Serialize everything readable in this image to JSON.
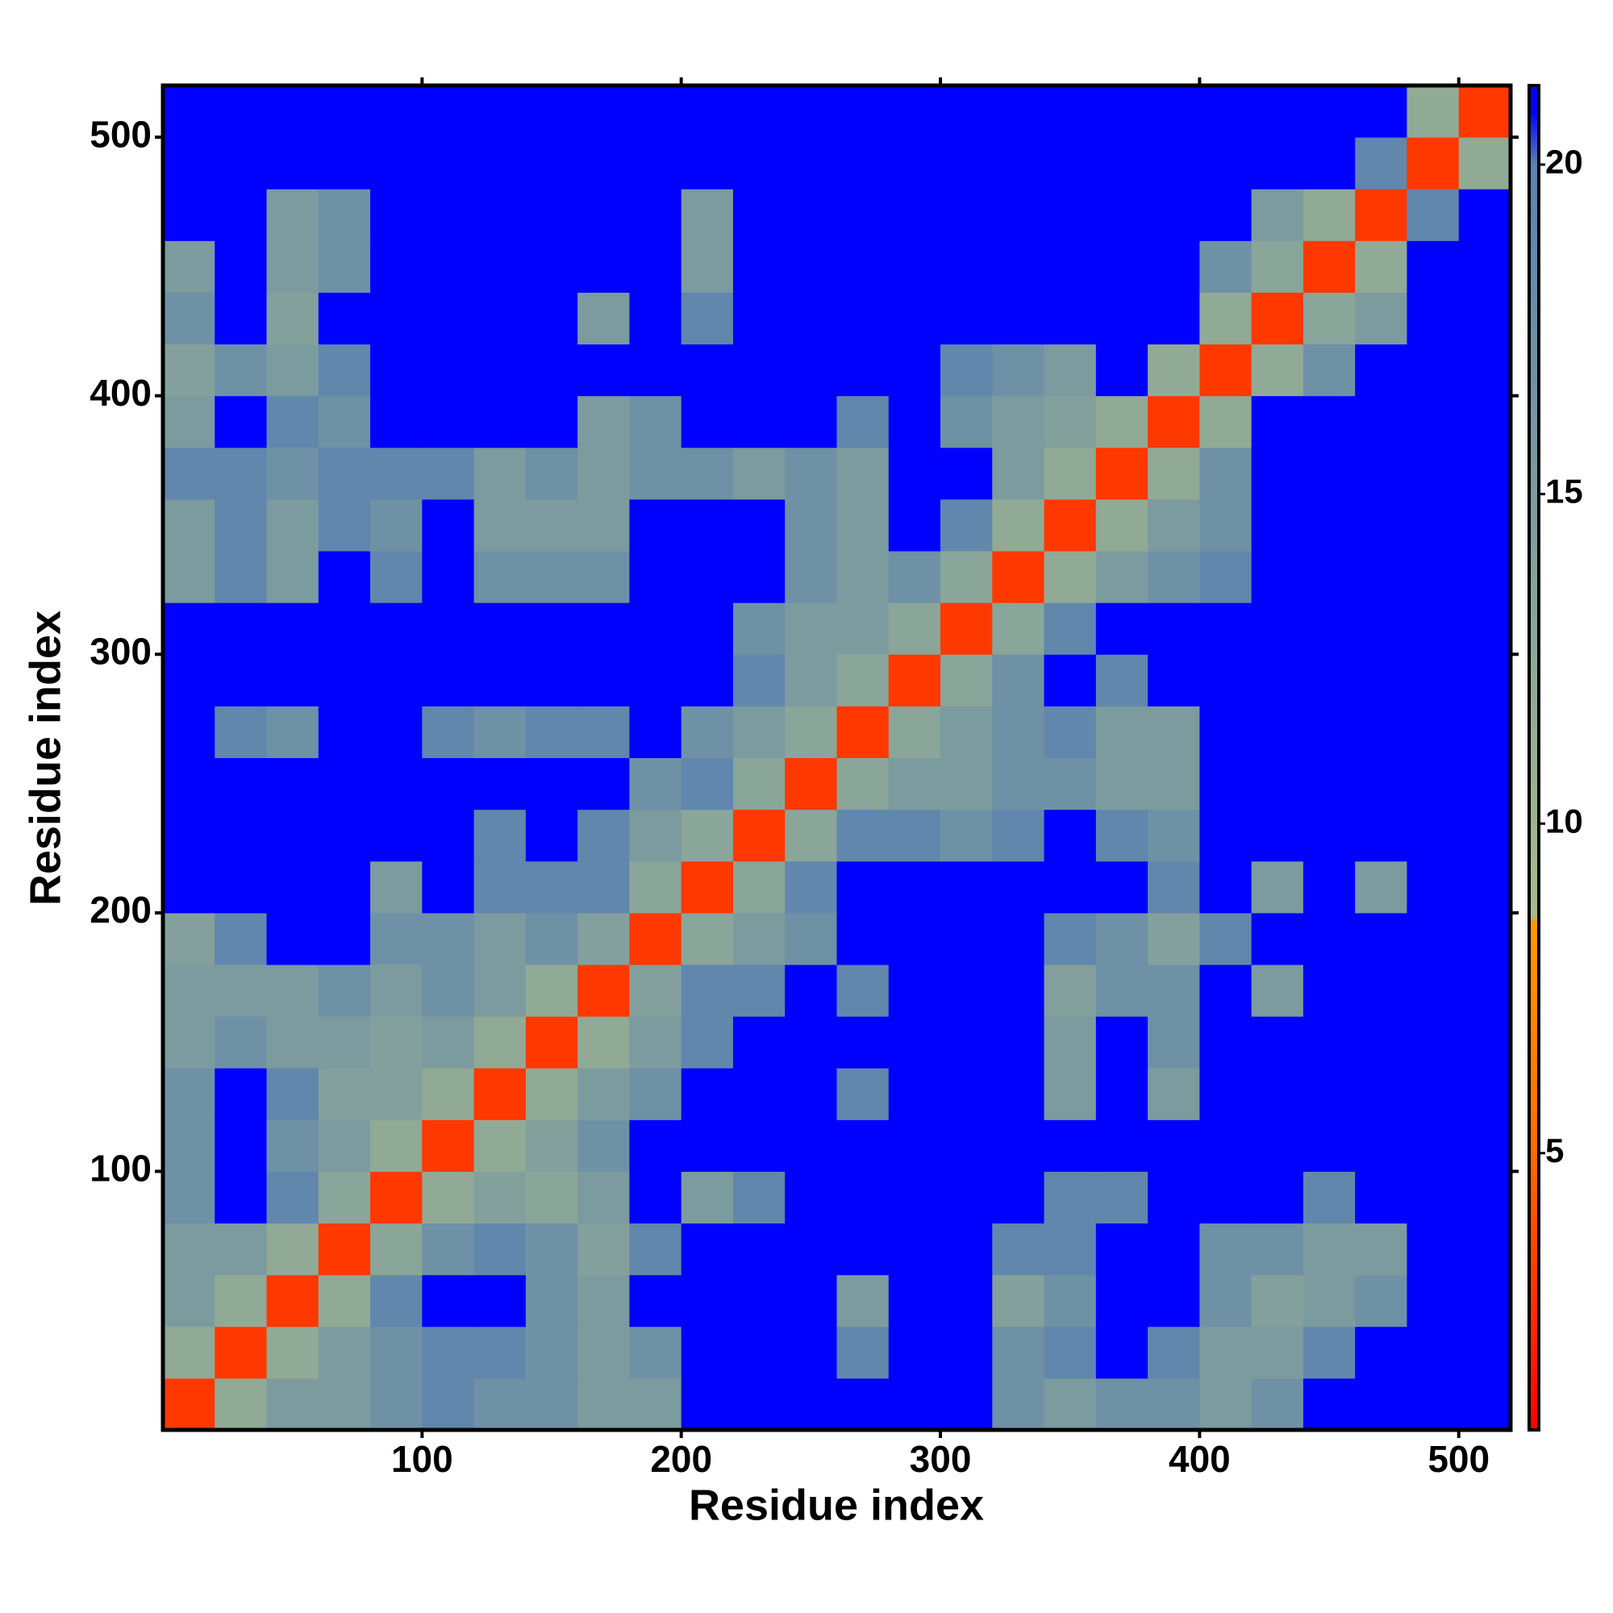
{
  "chart_data": {
    "type": "heatmap",
    "x_label": "Residue index",
    "y_label": "Residue index",
    "bins": [
      0,
      20,
      40,
      60,
      80,
      100,
      120,
      140,
      160,
      180,
      200,
      220,
      240,
      260,
      280,
      300,
      320,
      340,
      360,
      380,
      400,
      420,
      440,
      460,
      480,
      500,
      520
    ],
    "xlim": [
      0,
      520
    ],
    "ylim": [
      0,
      520
    ],
    "xticks": [
      100,
      200,
      300,
      400,
      500
    ],
    "yticks": [
      100,
      200,
      300,
      400,
      500
    ],
    "zlim": [
      0.8,
      21.2
    ],
    "zticks": [
      5,
      10,
      15,
      20
    ],
    "colorscale": [
      [
        0.8,
        "#ff0000"
      ],
      [
        5,
        "#ff6a00"
      ],
      [
        8.5,
        "#ff9900"
      ],
      [
        8.6,
        "#a8bb8a"
      ],
      [
        20,
        "#5a82b0"
      ],
      [
        20.8,
        "#0000ff"
      ],
      [
        21.2,
        "#0000ff"
      ]
    ],
    "values": [
      [
        3,
        12,
        15,
        15,
        17,
        19,
        17,
        17,
        15,
        15,
        21,
        21,
        21,
        21,
        21,
        21,
        17,
        15,
        17,
        17,
        15,
        17,
        21,
        21,
        21,
        21
      ],
      [
        12,
        3,
        12,
        15,
        17,
        19,
        19,
        17,
        15,
        17,
        21,
        21,
        21,
        19,
        21,
        21,
        17,
        19,
        21,
        19,
        15,
        15,
        19,
        21,
        21,
        21
      ],
      [
        15,
        12,
        3,
        12,
        19,
        21,
        21,
        17,
        15,
        21,
        21,
        21,
        21,
        15,
        21,
        21,
        14,
        17,
        21,
        21,
        17,
        14,
        15,
        17,
        21,
        21
      ],
      [
        15,
        15,
        12,
        3,
        13,
        17,
        19,
        17,
        14,
        19,
        21,
        21,
        21,
        21,
        21,
        21,
        19,
        19,
        21,
        21,
        17,
        17,
        15,
        15,
        21,
        21
      ],
      [
        17,
        21,
        19,
        13,
        3,
        12,
        14,
        13,
        15,
        21,
        15,
        19,
        21,
        21,
        21,
        21,
        21,
        19,
        19,
        21,
        21,
        21,
        19,
        21,
        21,
        21
      ],
      [
        17,
        21,
        17,
        15,
        12,
        3,
        12,
        14,
        17,
        21,
        21,
        21,
        21,
        21,
        21,
        21,
        21,
        21,
        21,
        21,
        21,
        21,
        21,
        21,
        21,
        21
      ],
      [
        17,
        21,
        19,
        14,
        14,
        12,
        3,
        12,
        15,
        17,
        21,
        21,
        21,
        19,
        21,
        21,
        21,
        15,
        21,
        15,
        21,
        21,
        21,
        21,
        21,
        21
      ],
      [
        15,
        17,
        15,
        15,
        14,
        15,
        12,
        3,
        12,
        15,
        19,
        21,
        21,
        21,
        21,
        21,
        21,
        15,
        21,
        17,
        21,
        21,
        21,
        21,
        21,
        21
      ],
      [
        15,
        15,
        15,
        17,
        15,
        17,
        15,
        12,
        3,
        14,
        19,
        19,
        21,
        19,
        21,
        21,
        21,
        14,
        17,
        17,
        21,
        15,
        21,
        21,
        21,
        21
      ],
      [
        14,
        19,
        21,
        21,
        17,
        17,
        15,
        17,
        14,
        3,
        13,
        15,
        17,
        21,
        21,
        21,
        21,
        19,
        17,
        14,
        19,
        21,
        21,
        21,
        21,
        21
      ],
      [
        21,
        21,
        21,
        21,
        15,
        21,
        19,
        19,
        19,
        13,
        3,
        13,
        19,
        21,
        21,
        21,
        21,
        21,
        21,
        19,
        21,
        15,
        21,
        15,
        21,
        21
      ],
      [
        21,
        21,
        21,
        21,
        21,
        21,
        19,
        21,
        19,
        15,
        13,
        3,
        13,
        19,
        19,
        17,
        19,
        21,
        19,
        17,
        21,
        21,
        21,
        21,
        21,
        21
      ],
      [
        21,
        21,
        21,
        21,
        21,
        21,
        21,
        21,
        21,
        17,
        19,
        13,
        3,
        13,
        15,
        15,
        17,
        17,
        15,
        15,
        21,
        21,
        21,
        21,
        21,
        21
      ],
      [
        21,
        19,
        17,
        21,
        21,
        19,
        17,
        19,
        19,
        21,
        17,
        15,
        13,
        3,
        13,
        15,
        17,
        19,
        15,
        15,
        21,
        21,
        21,
        21,
        21,
        21
      ],
      [
        21,
        21,
        21,
        21,
        21,
        21,
        21,
        21,
        21,
        21,
        21,
        19,
        15,
        13,
        3,
        13,
        17,
        21,
        19,
        21,
        21,
        21,
        21,
        21,
        21,
        21
      ],
      [
        21,
        21,
        21,
        21,
        21,
        21,
        21,
        21,
        21,
        21,
        21,
        17,
        15,
        15,
        13,
        3,
        13,
        19,
        21,
        21,
        21,
        21,
        21,
        21,
        21,
        21
      ],
      [
        15,
        19,
        15,
        21,
        19,
        21,
        17,
        17,
        17,
        21,
        21,
        21,
        17,
        15,
        17,
        13,
        3,
        12,
        15,
        17,
        19,
        21,
        21,
        21,
        21,
        21
      ],
      [
        15,
        19,
        15,
        19,
        17,
        21,
        15,
        15,
        15,
        21,
        21,
        21,
        17,
        15,
        21,
        19,
        12,
        3,
        12,
        15,
        17,
        21,
        21,
        21,
        21,
        21
      ],
      [
        19,
        19,
        17,
        19,
        19,
        19,
        15,
        17,
        15,
        17,
        17,
        15,
        17,
        15,
        21,
        21,
        15,
        12,
        3,
        12,
        17,
        21,
        21,
        21,
        21,
        21
      ],
      [
        15,
        21,
        19,
        17,
        21,
        21,
        21,
        21,
        15,
        17,
        21,
        21,
        21,
        19,
        21,
        17,
        15,
        14,
        12,
        3,
        12,
        21,
        21,
        21,
        21,
        21
      ],
      [
        14,
        17,
        15,
        19,
        21,
        21,
        21,
        21,
        21,
        21,
        21,
        21,
        21,
        21,
        21,
        19,
        17,
        15,
        21,
        12,
        3,
        12,
        17,
        21,
        21,
        21
      ],
      [
        17,
        21,
        14,
        21,
        21,
        21,
        21,
        21,
        15,
        21,
        19,
        21,
        21,
        21,
        21,
        21,
        21,
        21,
        21,
        21,
        12,
        3,
        13,
        15,
        21,
        21
      ],
      [
        15,
        21,
        15,
        17,
        21,
        21,
        21,
        21,
        21,
        21,
        15,
        21,
        21,
        21,
        21,
        21,
        21,
        21,
        21,
        21,
        17,
        13,
        3,
        12,
        21,
        21
      ],
      [
        21,
        21,
        15,
        17,
        21,
        21,
        21,
        21,
        21,
        21,
        15,
        21,
        21,
        21,
        21,
        21,
        21,
        21,
        21,
        21,
        21,
        15,
        12,
        3,
        19,
        21
      ],
      [
        21,
        21,
        21,
        21,
        21,
        21,
        21,
        21,
        21,
        21,
        21,
        21,
        21,
        21,
        21,
        21,
        21,
        21,
        21,
        21,
        21,
        21,
        21,
        19,
        3,
        12
      ],
      [
        21,
        21,
        21,
        21,
        21,
        21,
        21,
        21,
        21,
        21,
        21,
        21,
        21,
        21,
        21,
        21,
        21,
        21,
        21,
        21,
        21,
        21,
        21,
        21,
        12,
        3
      ]
    ]
  }
}
